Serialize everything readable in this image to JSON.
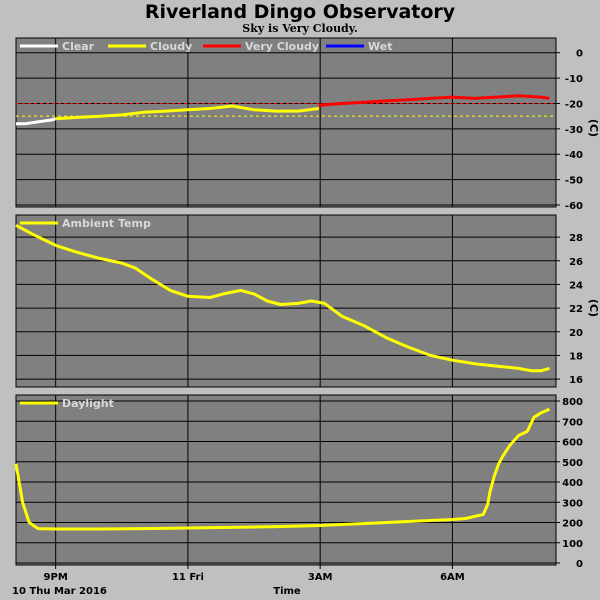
{
  "title": "Riverland Dingo Observatory",
  "subtitle": "Sky is Very Cloudy.",
  "colors": {
    "background": "#c0c0c0",
    "plot_bg": "#808080",
    "grid": "#000000",
    "clear": "#ffffff",
    "cloudy": "#ffff00",
    "very_cloudy": "#ff0000",
    "wet": "#0000ff"
  },
  "chart_data": [
    {
      "type": "line",
      "legend": [
        "Clear",
        "Cloudy",
        "Very Cloudy",
        "Wet"
      ],
      "ylabel": "(C)",
      "ylim": [
        -60,
        5
      ],
      "yticks": [
        0,
        -10,
        -20,
        -30,
        -40,
        -50,
        -60
      ],
      "thresholds": [
        {
          "value": -20,
          "color": "#ff0000"
        },
        {
          "value": -25,
          "color": "#ffff00"
        }
      ],
      "series": [
        {
          "name": "Clear",
          "color": "#ffffff",
          "x": [
            20.1,
            20.3,
            20.5,
            20.7,
            20.9,
            21.0
          ],
          "y": [
            -28,
            -28,
            -27.5,
            -27,
            -26.5,
            -26
          ]
        },
        {
          "name": "Cloudy",
          "color": "#ffff00",
          "x": [
            21.0,
            21.5,
            22.0,
            22.5,
            23.0,
            23.5,
            24.0,
            24.5,
            25.0,
            25.5,
            26.0,
            26.5,
            26.97
          ],
          "y": [
            -26,
            -25.5,
            -25,
            -24.5,
            -23.5,
            -23,
            -22.5,
            -22,
            -21,
            -22.5,
            -23,
            -23,
            -22
          ]
        },
        {
          "name": "Very Cloudy",
          "color": "#ff0000",
          "x": [
            26.97,
            27.1,
            27.5,
            28.0,
            28.5,
            29.0,
            29.5,
            30.0,
            30.5,
            31.0,
            31.5,
            32.0,
            32.2
          ],
          "y": [
            -21,
            -20.5,
            -20,
            -19.5,
            -19,
            -18.5,
            -18,
            -17.5,
            -18,
            -17.5,
            -17,
            -17.5,
            -18
          ]
        }
      ]
    },
    {
      "type": "line",
      "legend": [
        "Ambient Temp"
      ],
      "ylabel": "(C)",
      "ylim": [
        15.5,
        29.7
      ],
      "yticks": [
        28,
        26,
        24,
        22,
        20,
        18,
        16
      ],
      "series": [
        {
          "name": "Ambient Temp",
          "color": "#ffff00",
          "x": [
            20.1,
            20.5,
            21.0,
            21.5,
            22.0,
            22.5,
            22.8,
            23.2,
            23.6,
            24.0,
            24.5,
            24.8,
            25.2,
            25.5,
            25.8,
            26.1,
            26.5,
            26.8,
            27.1,
            27.5,
            28.0,
            28.5,
            29.0,
            29.5,
            30.0,
            30.5,
            31.0,
            31.5,
            31.8,
            32.0,
            32.2
          ],
          "y": [
            29.0,
            28.2,
            27.3,
            26.7,
            26.2,
            25.8,
            25.4,
            24.4,
            23.5,
            23.0,
            22.9,
            23.2,
            23.5,
            23.2,
            22.6,
            22.3,
            22.4,
            22.6,
            22.4,
            21.3,
            20.5,
            19.5,
            18.7,
            18.0,
            17.6,
            17.3,
            17.1,
            16.9,
            16.7,
            16.7,
            16.9
          ]
        }
      ]
    },
    {
      "type": "line",
      "legend": [
        "Daylight"
      ],
      "ylim": [
        0,
        820
      ],
      "yticks": [
        800,
        700,
        600,
        500,
        400,
        300,
        200,
        100,
        0
      ],
      "series": [
        {
          "name": "Daylight",
          "color": "#ffff00",
          "x": [
            20.1,
            20.25,
            20.4,
            20.6,
            21.0,
            22.0,
            23.0,
            24.0,
            25.0,
            26.0,
            27.0,
            28.0,
            29.0,
            30.0,
            30.3,
            30.6,
            30.7,
            30.8,
            30.85,
            30.95,
            31.05,
            31.15,
            31.3,
            31.5,
            31.7,
            31.85,
            32.0,
            32.2
          ],
          "y": [
            490,
            300,
            200,
            170,
            168,
            168,
            170,
            173,
            176,
            180,
            185,
            195,
            205,
            215,
            220,
            235,
            240,
            290,
            350,
            430,
            490,
            530,
            580,
            630,
            650,
            720,
            740,
            760
          ]
        }
      ]
    }
  ],
  "x_axis": {
    "ticks": [
      {
        "label": "9PM",
        "value": 21
      },
      {
        "label": "11 Fri",
        "value": 24
      },
      {
        "label": "3AM",
        "value": 27
      },
      {
        "label": "6AM",
        "value": 30
      }
    ],
    "date_label": "10 Thu Mar 2016",
    "xlabel": "Time",
    "range": [
      20.1,
      32.35
    ]
  }
}
